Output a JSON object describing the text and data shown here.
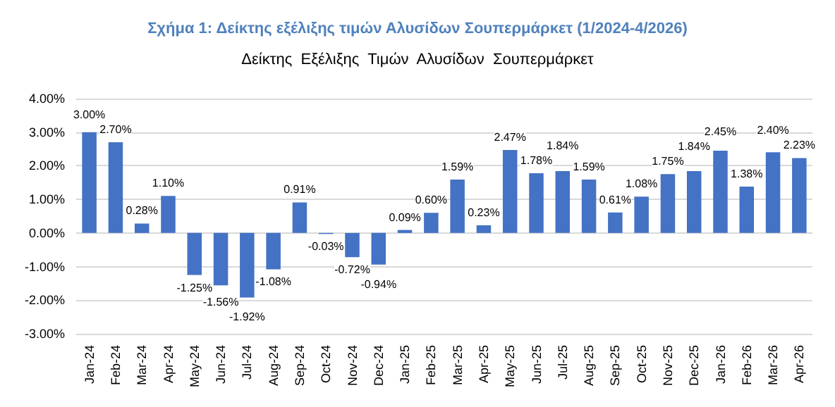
{
  "chart_data": {
    "type": "bar",
    "title": "Σχήμα 1: Δείκτης εξέλιξης τιμών Αλυσίδων Σουπερμάρκετ (1/2024-4/2026)",
    "subtitle": "Δείκτης  Εξέλιξης  Τιμών  Αλυσίδων  Σουπερμάρκετ",
    "categories": [
      "Jan-24",
      "Feb-24",
      "Mar-24",
      "Apr-24",
      "May-24",
      "Jun-24",
      "Jul-24",
      "Aug-24",
      "Sep-24",
      "Oct-24",
      "Nov-24",
      "Dec-24",
      "Jan-25",
      "Feb-25",
      "Mar-25",
      "Apr-25",
      "May-25",
      "Jun-25",
      "Jul-25",
      "Aug-25",
      "Sep-25",
      "Oct-25",
      "Nov-25",
      "Dec-25",
      "Jan-26",
      "Feb-26",
      "Mar-26",
      "Apr-26"
    ],
    "values": [
      3.0,
      2.7,
      0.28,
      1.1,
      -1.25,
      -1.56,
      -1.92,
      -1.08,
      0.91,
      -0.03,
      -0.72,
      -0.94,
      0.09,
      0.6,
      1.59,
      0.23,
      2.47,
      1.78,
      1.84,
      1.59,
      0.61,
      1.08,
      1.75,
      1.84,
      2.45,
      1.38,
      2.4,
      2.23
    ],
    "value_labels": [
      "3.00%",
      "2.70%",
      "0.28%",
      "1.10%",
      "-1.25%",
      "-1.56%",
      "-1.92%",
      "-1.08%",
      "0.91%",
      "-0.03%",
      "-0.72%",
      "-0.94%",
      "0.09%",
      "0.60%",
      "1.59%",
      "0.23%",
      "2.47%",
      "1.78%",
      "1.84%",
      "1.59%",
      "0.61%",
      "1.08%",
      "1.75%",
      "1.84%",
      "2.45%",
      "1.38%",
      "2.40%",
      "2.23%"
    ],
    "color": "#4472c4",
    "ylim": [
      -3,
      4
    ],
    "yticks": [
      {
        "value": -3,
        "label": "-3.00%"
      },
      {
        "value": -2,
        "label": "-2.00%"
      },
      {
        "value": -1,
        "label": "-1.00%"
      },
      {
        "value": 0,
        "label": "0.00%"
      },
      {
        "value": 1,
        "label": "1.00%"
      },
      {
        "value": 2,
        "label": "2.00%"
      },
      {
        "value": 3,
        "label": "3.00%"
      },
      {
        "value": 4,
        "label": "4.00%"
      }
    ],
    "grid": "y"
  }
}
